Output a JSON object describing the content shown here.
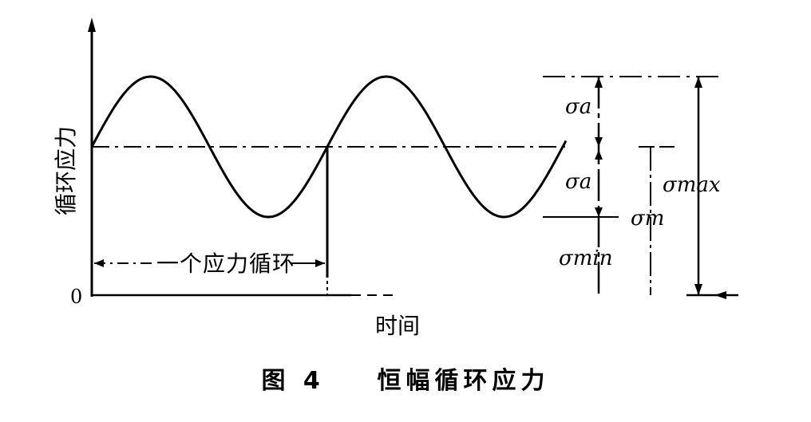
{
  "figure": {
    "ylabel": "循环应力",
    "xlabel": "时间",
    "origin": "0",
    "cycle_label": "一个应力循环",
    "sigma_a_top": "σa",
    "sigma_a_bottom": "σa",
    "sigma_min": "σmin",
    "sigma_m": "σm",
    "sigma_max": "σmax"
  },
  "caption": {
    "number": "图 4",
    "title": "恒幅循环应力"
  }
}
